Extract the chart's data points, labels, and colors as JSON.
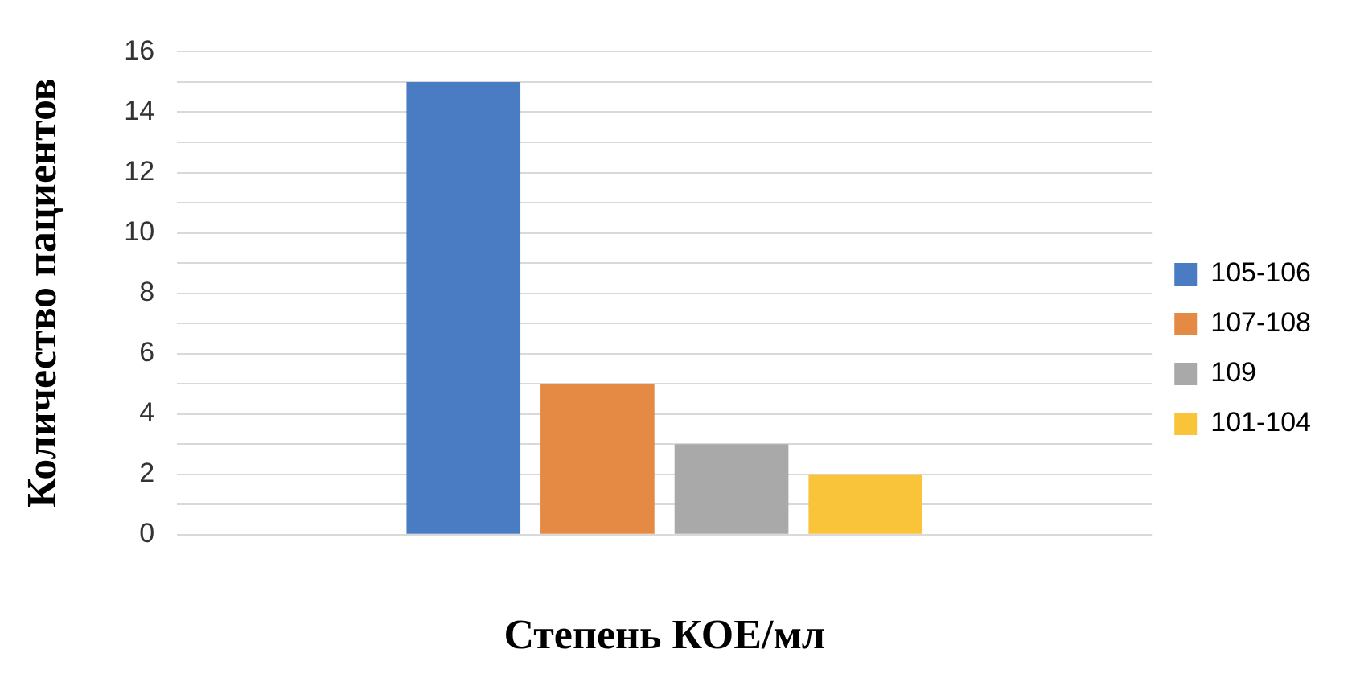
{
  "chart_data": {
    "type": "bar",
    "xlabel": "Степень КОЕ/мл",
    "ylabel": "Количество пациентов",
    "categories": [
      null
    ],
    "series": [
      {
        "name": "105-106",
        "color": "#4a7cc3",
        "values": [
          15
        ]
      },
      {
        "name": "107-108",
        "color": "#e58a45",
        "values": [
          5
        ]
      },
      {
        "name": "109",
        "color": "#a9a9a9",
        "values": [
          3
        ]
      },
      {
        "name": "101-104",
        "color": "#f9c33a",
        "values": [
          2
        ]
      }
    ],
    "ylim": [
      0,
      16
    ],
    "yticks": [
      0,
      {
        "value": 1,
        "label": null
      },
      2,
      {
        "value": 3,
        "label": null
      },
      4,
      {
        "value": 5,
        "label": null
      },
      6,
      {
        "value": 7,
        "label": null
      },
      8,
      {
        "value": 9,
        "label": null
      },
      10,
      {
        "value": 11,
        "label": null
      },
      12,
      {
        "value": 13,
        "label": null
      },
      14,
      {
        "value": 15,
        "label": null
      },
      16
    ],
    "grid": "y",
    "legend": "right"
  }
}
